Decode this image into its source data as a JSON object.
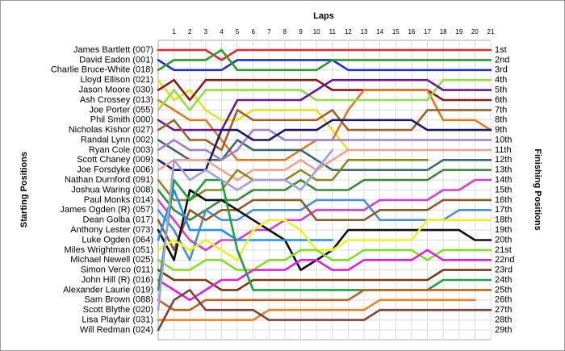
{
  "chart_data": {
    "type": "lap",
    "title": "Laps",
    "y_label_left": "Starting Positions",
    "y_label_right": "Finishing Positions",
    "x": [
      0,
      1,
      2,
      3,
      4,
      5,
      6,
      7,
      8,
      9,
      10,
      11,
      12,
      13,
      14,
      15,
      16,
      17,
      18,
      19,
      20,
      21
    ],
    "xlim": [
      0,
      21
    ],
    "xticks": [
      1,
      2,
      3,
      4,
      5,
      6,
      7,
      8,
      9,
      10,
      11,
      12,
      13,
      14,
      15,
      16,
      17,
      18,
      19,
      20,
      21
    ],
    "ylim": [
      1,
      29
    ],
    "grid": true,
    "yticks": [
      {
        "value": 1,
        "label": "1st"
      },
      {
        "value": 2,
        "label": "2nd"
      },
      {
        "value": 3,
        "label": "3rd"
      },
      {
        "value": 4,
        "label": "4th"
      },
      {
        "value": 5,
        "label": "5th"
      },
      {
        "value": 6,
        "label": "6th"
      },
      {
        "value": 7,
        "label": "7th"
      },
      {
        "value": 8,
        "label": "8th"
      },
      {
        "value": 9,
        "label": "9th"
      },
      {
        "value": 10,
        "label": "10th"
      },
      {
        "value": 11,
        "label": "11th"
      },
      {
        "value": 12,
        "label": "12th"
      },
      {
        "value": 13,
        "label": "13th"
      },
      {
        "value": 14,
        "label": "14th"
      },
      {
        "value": 15,
        "label": "15th"
      },
      {
        "value": 16,
        "label": "16th"
      },
      {
        "value": 17,
        "label": "17th"
      },
      {
        "value": 18,
        "label": "18th"
      },
      {
        "value": 19,
        "label": "19th"
      },
      {
        "value": 20,
        "label": "20th"
      },
      {
        "value": 21,
        "label": "21st"
      },
      {
        "value": 22,
        "label": "22nd"
      },
      {
        "value": 23,
        "label": "23rd"
      },
      {
        "value": 24,
        "label": "24th"
      },
      {
        "value": 25,
        "label": "25th"
      },
      {
        "value": 26,
        "label": "26th"
      },
      {
        "value": 27,
        "label": "27th"
      },
      {
        "value": 28,
        "label": "28th"
      },
      {
        "value": 29,
        "label": "29th"
      }
    ],
    "series": [
      {
        "name": "James Bartlett (007)",
        "color": "#e8262b",
        "values": [
          1,
          1,
          1,
          1,
          2,
          1,
          1,
          1,
          1,
          1,
          1,
          1,
          1,
          1,
          1,
          1,
          1,
          1,
          1,
          1,
          1,
          1
        ]
      },
      {
        "name": "David Eadon (001)",
        "color": "#1f2fd0",
        "values": [
          2,
          3,
          3,
          3,
          3,
          2,
          2,
          2,
          2,
          2,
          2,
          2,
          3,
          3,
          3,
          3,
          3,
          3,
          3,
          3,
          3,
          3
        ]
      },
      {
        "name": "Charlie Bruce-White (018)",
        "color": "#2a9a2a",
        "values": [
          3,
          2,
          2,
          2,
          1,
          3,
          3,
          3,
          3,
          3,
          3,
          2,
          2,
          2,
          2,
          2,
          2,
          2,
          2,
          2,
          2,
          2
        ]
      },
      {
        "name": "Lloyd Ellison (021)",
        "color": "#e8e020",
        "values": [
          4,
          6,
          5,
          7,
          8,
          8,
          7,
          7,
          7,
          7,
          7,
          9,
          11,
          null,
          null,
          null,
          null,
          null,
          null,
          null,
          null,
          null
        ]
      },
      {
        "name": "Jason Moore (030)",
        "color": "#8b1a1a",
        "values": [
          5,
          4,
          6,
          4,
          4,
          4,
          4,
          4,
          4,
          4,
          4,
          5,
          5,
          5,
          5,
          5,
          5,
          5,
          6,
          6,
          6,
          6
        ]
      },
      {
        "name": "Ash Crossey (013)",
        "color": "#e07a20",
        "values": [
          6,
          7,
          8,
          8,
          10,
          12,
          12,
          12,
          12,
          11,
          10,
          10,
          7,
          5,
          5,
          5,
          5,
          5,
          8,
          8,
          8,
          9
        ]
      },
      {
        "name": "Joe Porter (055)",
        "color": "#90e040",
        "values": [
          7,
          5,
          7,
          5,
          5,
          5,
          5,
          5,
          5,
          5,
          6,
          6,
          6,
          6,
          6,
          6,
          6,
          6,
          4,
          4,
          4,
          4
        ]
      },
      {
        "name": "Phil Smith (000)",
        "color": "#6a1a8a",
        "values": [
          8,
          9,
          9,
          9,
          9,
          6,
          6,
          6,
          6,
          6,
          5,
          4,
          4,
          4,
          4,
          4,
          4,
          4,
          5,
          5,
          5,
          5
        ]
      },
      {
        "name": "Nicholas Kishor (027)",
        "color": "#a0602a",
        "values": [
          9,
          8,
          10,
          10,
          11,
          7,
          8,
          8,
          8,
          8,
          8,
          7,
          9,
          9,
          9,
          9,
          9,
          7,
          7,
          7,
          7,
          7
        ]
      },
      {
        "name": "Randal Lynn (002)",
        "color": "#3a6a6a",
        "values": [
          10,
          11,
          12,
          12,
          12,
          10,
          11,
          11,
          11,
          11,
          12,
          13,
          13,
          13,
          13,
          13,
          13,
          13,
          12,
          12,
          12,
          12
        ]
      },
      {
        "name": "Ryan Cole (003)",
        "color": "#a080d0",
        "values": [
          11,
          10,
          11,
          11,
          12,
          11,
          9,
          9,
          10,
          10,
          10,
          10,
          10,
          10,
          10,
          10,
          10,
          10,
          10,
          10,
          10,
          10
        ]
      },
      {
        "name": "Scott Chaney (009)",
        "color": "#1a1a6a",
        "values": [
          12,
          13,
          13,
          13,
          9,
          9,
          10,
          10,
          9,
          9,
          9,
          8,
          8,
          8,
          8,
          8,
          8,
          9,
          9,
          9,
          9,
          9
        ]
      },
      {
        "name": "Joe Forsdyke (006)",
        "color": "#f0a090",
        "values": [
          13,
          12,
          12,
          12,
          13,
          14,
          13,
          13,
          13,
          12,
          13,
          12,
          11,
          11,
          11,
          11,
          11,
          11,
          11,
          11,
          11,
          11
        ]
      },
      {
        "name": "Nathan Durnford (091)",
        "color": "#8a8a20",
        "values": [
          14,
          16,
          16,
          15,
          15,
          13,
          14,
          14,
          14,
          13,
          14,
          14,
          12,
          12,
          12,
          12,
          12,
          12,
          null,
          null,
          null,
          null
        ]
      },
      {
        "name": "Joshua Waring (008)",
        "color": "#3a8a3a",
        "values": [
          15,
          17,
          18,
          17,
          16,
          16,
          15,
          15,
          15,
          14,
          15,
          15,
          15,
          14,
          14,
          14,
          14,
          14,
          13,
          13,
          13,
          13
        ]
      },
      {
        "name": "Paul Monks (014)",
        "color": "#d040d0",
        "values": [
          16,
          18,
          20,
          21,
          20,
          20,
          19,
          19,
          18,
          18,
          17,
          17,
          17,
          17,
          16,
          16,
          16,
          16,
          15,
          15,
          14,
          14
        ]
      },
      {
        "name": "James Ogden (R) (057)",
        "color": "#4a90d0",
        "values": [
          17,
          19,
          22,
          17,
          18,
          18,
          17,
          17,
          17,
          17,
          16,
          16,
          16,
          16,
          18,
          18,
          18,
          18,
          18,
          17,
          17,
          17
        ]
      },
      {
        "name": "Dean Golba (017)",
        "color": "#8a5a2a",
        "values": [
          18,
          21,
          17,
          18,
          17,
          17,
          16,
          16,
          16,
          16,
          18,
          18,
          18,
          18,
          17,
          17,
          17,
          17,
          16,
          16,
          16,
          16
        ]
      },
      {
        "name": "Anthony Lester (073)",
        "color": "#101010",
        "values": [
          19,
          22,
          15,
          16,
          16,
          17,
          18,
          19,
          20,
          23,
          22,
          21,
          19,
          19,
          19,
          19,
          19,
          19,
          19,
          19,
          20,
          20
        ]
      },
      {
        "name": "Luke Ogden (064)",
        "color": "#1e90ff",
        "values": [
          20,
          15,
          19,
          19,
          19,
          20,
          20,
          20,
          20,
          20,
          20,
          20,
          null,
          null,
          null,
          null,
          null,
          null,
          null,
          null,
          null,
          null
        ]
      },
      {
        "name": "Miles Wrightman (051)",
        "color": "#f0f020",
        "values": [
          21,
          20,
          21,
          20,
          21,
          22,
          19,
          18,
          18,
          19,
          21,
          21,
          20,
          20,
          20,
          20,
          20,
          18,
          18,
          18,
          18,
          18
        ]
      },
      {
        "name": "Michael Newell (025)",
        "color": "#80e020",
        "values": [
          22,
          23,
          23,
          22,
          22,
          23,
          23,
          22,
          22,
          21,
          21,
          22,
          22,
          21,
          21,
          21,
          21,
          22,
          21,
          21,
          21,
          21
        ]
      },
      {
        "name": "Simon Verco (011)",
        "color": "#7a3a1a",
        "values": [
          23,
          24,
          24,
          24,
          25,
          25,
          24,
          24,
          24,
          24,
          24,
          24,
          24,
          24,
          24,
          24,
          24,
          24,
          23,
          23,
          23,
          23
        ]
      },
      {
        "name": "John Hill  (R) (016)",
        "color": "#e020e0",
        "values": [
          24,
          25,
          26,
          25,
          24,
          24,
          23,
          23,
          23,
          22,
          22,
          23,
          23,
          22,
          22,
          22,
          22,
          21,
          22,
          22,
          22,
          22
        ]
      },
      {
        "name": "Alexander Laurie (019)",
        "color": "#20a040",
        "values": [
          25,
          14,
          16,
          14,
          14,
          21,
          25,
          25,
          25,
          25,
          25,
          25,
          25,
          25,
          25,
          25,
          25,
          25,
          24,
          24,
          24,
          24
        ]
      },
      {
        "name": "Sam Brown (088)",
        "color": "#c06020",
        "values": [
          26,
          27,
          27,
          26,
          26,
          26,
          26,
          26,
          26,
          26,
          26,
          26,
          26,
          25,
          25,
          25,
          25,
          25,
          25,
          25,
          25,
          25
        ]
      },
      {
        "name": "Scott Blythe (020)",
        "color": "#a0a0e0",
        "values": [
          27,
          12,
          14,
          13,
          14,
          15,
          14,
          14,
          14,
          15,
          13,
          11,
          null,
          null,
          null,
          null,
          null,
          null,
          null,
          null,
          null,
          null
        ]
      },
      {
        "name": "Lisa Playfair (031)",
        "color": "#f08020",
        "values": [
          28,
          28,
          28,
          28,
          28,
          28,
          28,
          27,
          27,
          27,
          27,
          27,
          27,
          27,
          26,
          26,
          26,
          26,
          26,
          26,
          26,
          null
        ]
      },
      {
        "name": "Will Redman (024)",
        "color": "#804040",
        "values": [
          29,
          26,
          25,
          27,
          27,
          27,
          27,
          28,
          28,
          28,
          28,
          28,
          28,
          28,
          27,
          27,
          27,
          27,
          27,
          27,
          27,
          27
        ]
      }
    ]
  }
}
